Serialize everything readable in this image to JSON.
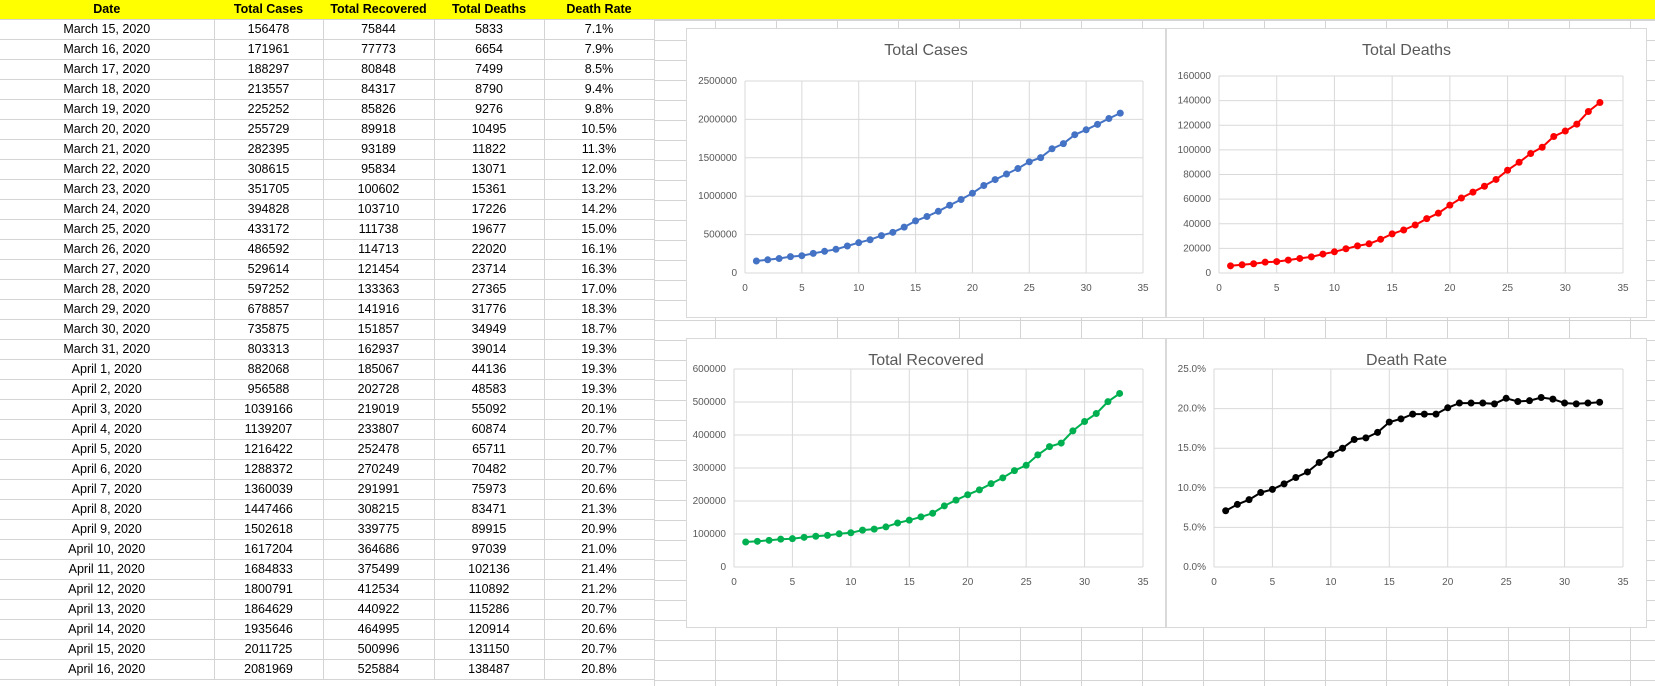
{
  "table": {
    "headers": [
      "Date",
      "Total Cases",
      "Total Recovered",
      "Total Deaths",
      "Death Rate"
    ],
    "rows": [
      [
        "March 15, 2020",
        "156478",
        "75844",
        "5833",
        "7.1%"
      ],
      [
        "March 16, 2020",
        "171961",
        "77773",
        "6654",
        "7.9%"
      ],
      [
        "March 17, 2020",
        "188297",
        "80848",
        "7499",
        "8.5%"
      ],
      [
        "March 18, 2020",
        "213557",
        "84317",
        "8790",
        "9.4%"
      ],
      [
        "March 19, 2020",
        "225252",
        "85826",
        "9276",
        "9.8%"
      ],
      [
        "March 20, 2020",
        "255729",
        "89918",
        "10495",
        "10.5%"
      ],
      [
        "March 21, 2020",
        "282395",
        "93189",
        "11822",
        "11.3%"
      ],
      [
        "March 22, 2020",
        "308615",
        "95834",
        "13071",
        "12.0%"
      ],
      [
        "March 23, 2020",
        "351705",
        "100602",
        "15361",
        "13.2%"
      ],
      [
        "March 24, 2020",
        "394828",
        "103710",
        "17226",
        "14.2%"
      ],
      [
        "March 25, 2020",
        "433172",
        "111738",
        "19677",
        "15.0%"
      ],
      [
        "March 26, 2020",
        "486592",
        "114713",
        "22020",
        "16.1%"
      ],
      [
        "March 27, 2020",
        "529614",
        "121454",
        "23714",
        "16.3%"
      ],
      [
        "March 28, 2020",
        "597252",
        "133363",
        "27365",
        "17.0%"
      ],
      [
        "March 29, 2020",
        "678857",
        "141916",
        "31776",
        "18.3%"
      ],
      [
        "March 30, 2020",
        "735875",
        "151857",
        "34949",
        "18.7%"
      ],
      [
        "March 31, 2020",
        "803313",
        "162937",
        "39014",
        "19.3%"
      ],
      [
        "April 1, 2020",
        "882068",
        "185067",
        "44136",
        "19.3%"
      ],
      [
        "April 2, 2020",
        "956588",
        "202728",
        "48583",
        "19.3%"
      ],
      [
        "April 3, 2020",
        "1039166",
        "219019",
        "55092",
        "20.1%"
      ],
      [
        "April 4, 2020",
        "1139207",
        "233807",
        "60874",
        "20.7%"
      ],
      [
        "April 5, 2020",
        "1216422",
        "252478",
        "65711",
        "20.7%"
      ],
      [
        "April 6, 2020",
        "1288372",
        "270249",
        "70482",
        "20.7%"
      ],
      [
        "April 7, 2020",
        "1360039",
        "291991",
        "75973",
        "20.6%"
      ],
      [
        "April 8, 2020",
        "1447466",
        "308215",
        "83471",
        "21.3%"
      ],
      [
        "April 9, 2020",
        "1502618",
        "339775",
        "89915",
        "20.9%"
      ],
      [
        "April 10, 2020",
        "1617204",
        "364686",
        "97039",
        "21.0%"
      ],
      [
        "April 11, 2020",
        "1684833",
        "375499",
        "102136",
        "21.4%"
      ],
      [
        "April 12, 2020",
        "1800791",
        "412534",
        "110892",
        "21.2%"
      ],
      [
        "April 13, 2020",
        "1864629",
        "440922",
        "115286",
        "20.7%"
      ],
      [
        "April 14, 2020",
        "1935646",
        "464995",
        "120914",
        "20.6%"
      ],
      [
        "April 15, 2020",
        "2011725",
        "500996",
        "131150",
        "20.7%"
      ],
      [
        "April 16, 2020",
        "2081969",
        "525884",
        "138487",
        "20.8%"
      ]
    ]
  },
  "chart_data": [
    {
      "type": "line",
      "title": "Total Cases",
      "color": "#4472c4",
      "x": [
        1,
        2,
        3,
        4,
        5,
        6,
        7,
        8,
        9,
        10,
        11,
        12,
        13,
        14,
        15,
        16,
        17,
        18,
        19,
        20,
        21,
        22,
        23,
        24,
        25,
        26,
        27,
        28,
        29,
        30,
        31,
        32,
        33
      ],
      "values": [
        156478,
        171961,
        188297,
        213557,
        225252,
        255729,
        282395,
        308615,
        351705,
        394828,
        433172,
        486592,
        529614,
        597252,
        678857,
        735875,
        803313,
        882068,
        956588,
        1039166,
        1139207,
        1216422,
        1288372,
        1360039,
        1447466,
        1502618,
        1617204,
        1684833,
        1800791,
        1864629,
        1935646,
        2011725,
        2081969
      ],
      "xlim": [
        0,
        35
      ],
      "ylim": [
        0,
        2500000
      ],
      "xticks": [
        0,
        5,
        10,
        15,
        20,
        25,
        30,
        35
      ],
      "yticks": [
        0,
        500000,
        1000000,
        1500000,
        2000000,
        2500000
      ],
      "ytick_labels": [
        "0",
        "500000",
        "1000000",
        "1500000",
        "2000000",
        "2500000"
      ],
      "grid": true
    },
    {
      "type": "line",
      "title": "Total Deaths",
      "color": "#ff0000",
      "x": [
        1,
        2,
        3,
        4,
        5,
        6,
        7,
        8,
        9,
        10,
        11,
        12,
        13,
        14,
        15,
        16,
        17,
        18,
        19,
        20,
        21,
        22,
        23,
        24,
        25,
        26,
        27,
        28,
        29,
        30,
        31,
        32,
        33
      ],
      "values": [
        5833,
        6654,
        7499,
        8790,
        9276,
        10495,
        11822,
        13071,
        15361,
        17226,
        19677,
        22020,
        23714,
        27365,
        31776,
        34949,
        39014,
        44136,
        48583,
        55092,
        60874,
        65711,
        70482,
        75973,
        83471,
        89915,
        97039,
        102136,
        110892,
        115286,
        120914,
        131150,
        138487
      ],
      "xlim": [
        0,
        35
      ],
      "ylim": [
        0,
        160000
      ],
      "xticks": [
        0,
        5,
        10,
        15,
        20,
        25,
        30,
        35
      ],
      "yticks": [
        0,
        20000,
        40000,
        60000,
        80000,
        100000,
        120000,
        140000,
        160000
      ],
      "ytick_labels": [
        "0",
        "20000",
        "40000",
        "60000",
        "80000",
        "100000",
        "120000",
        "140000",
        "160000"
      ],
      "grid": true
    },
    {
      "type": "line",
      "title": "Total Recovered",
      "color": "#00b050",
      "x": [
        1,
        2,
        3,
        4,
        5,
        6,
        7,
        8,
        9,
        10,
        11,
        12,
        13,
        14,
        15,
        16,
        17,
        18,
        19,
        20,
        21,
        22,
        23,
        24,
        25,
        26,
        27,
        28,
        29,
        30,
        31,
        32,
        33
      ],
      "values": [
        75844,
        77773,
        80848,
        84317,
        85826,
        89918,
        93189,
        95834,
        100602,
        103710,
        111738,
        114713,
        121454,
        133363,
        141916,
        151857,
        162937,
        185067,
        202728,
        219019,
        233807,
        252478,
        270249,
        291991,
        308215,
        339775,
        364686,
        375499,
        412534,
        440922,
        464995,
        500996,
        525884
      ],
      "xlim": [
        0,
        35
      ],
      "ylim": [
        0,
        600000
      ],
      "xticks": [
        0,
        5,
        10,
        15,
        20,
        25,
        30,
        35
      ],
      "yticks": [
        0,
        100000,
        200000,
        300000,
        400000,
        500000,
        600000
      ],
      "ytick_labels": [
        "0",
        "100000",
        "200000",
        "300000",
        "400000",
        "500000",
        "600000"
      ],
      "grid": true
    },
    {
      "type": "line",
      "title": "Death Rate",
      "color": "#000000",
      "x": [
        1,
        2,
        3,
        4,
        5,
        6,
        7,
        8,
        9,
        10,
        11,
        12,
        13,
        14,
        15,
        16,
        17,
        18,
        19,
        20,
        21,
        22,
        23,
        24,
        25,
        26,
        27,
        28,
        29,
        30,
        31,
        32,
        33
      ],
      "values": [
        7.1,
        7.9,
        8.5,
        9.4,
        9.8,
        10.5,
        11.3,
        12.0,
        13.2,
        14.2,
        15.0,
        16.1,
        16.3,
        17.0,
        18.3,
        18.7,
        19.3,
        19.3,
        19.3,
        20.1,
        20.7,
        20.7,
        20.7,
        20.6,
        21.3,
        20.9,
        21.0,
        21.4,
        21.2,
        20.7,
        20.6,
        20.7,
        20.8
      ],
      "xlim": [
        0,
        35
      ],
      "ylim": [
        0,
        25
      ],
      "xticks": [
        0,
        5,
        10,
        15,
        20,
        25,
        30,
        35
      ],
      "yticks": [
        0,
        5,
        10,
        15,
        20,
        25
      ],
      "ytick_labels": [
        "0.0%",
        "5.0%",
        "10.0%",
        "15.0%",
        "20.0%",
        "25.0%"
      ],
      "grid": true
    }
  ]
}
